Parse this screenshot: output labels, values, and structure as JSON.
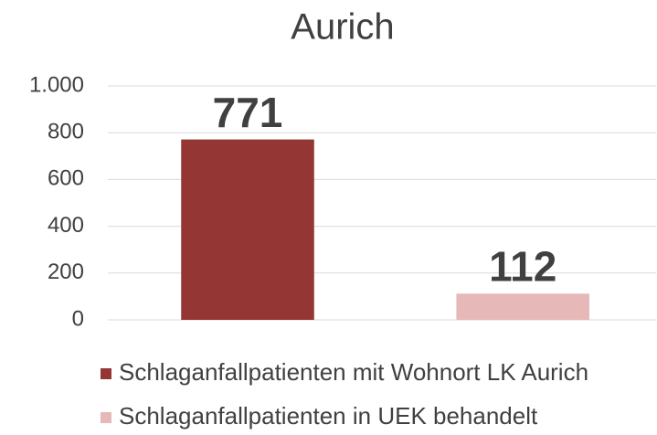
{
  "chart_data": {
    "type": "bar",
    "title": "Aurich",
    "categories": [
      null
    ],
    "series": [
      {
        "name": "Schlaganfallpatienten mit Wohnort LK Aurich",
        "color": "#943634",
        "values": [
          771
        ]
      },
      {
        "name": "Schlaganfallpatienten in UEK behandelt",
        "color": "#e6b8b7",
        "values": [
          112
        ]
      }
    ],
    "ylim": [
      0,
      1000
    ],
    "yticks": [
      0,
      200,
      400,
      600,
      800,
      {
        "value": 1000,
        "label": "1.000"
      }
    ],
    "grid": true,
    "legend": "bottom"
  }
}
